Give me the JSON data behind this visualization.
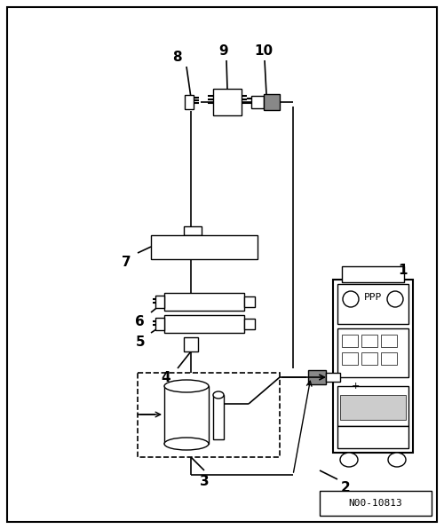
{
  "bg_color": "#ffffff",
  "border_color": "#000000",
  "diagram_id": "N00-10813",
  "line_color": "#000000",
  "gray_color": "#888888",
  "lw": 1.0
}
